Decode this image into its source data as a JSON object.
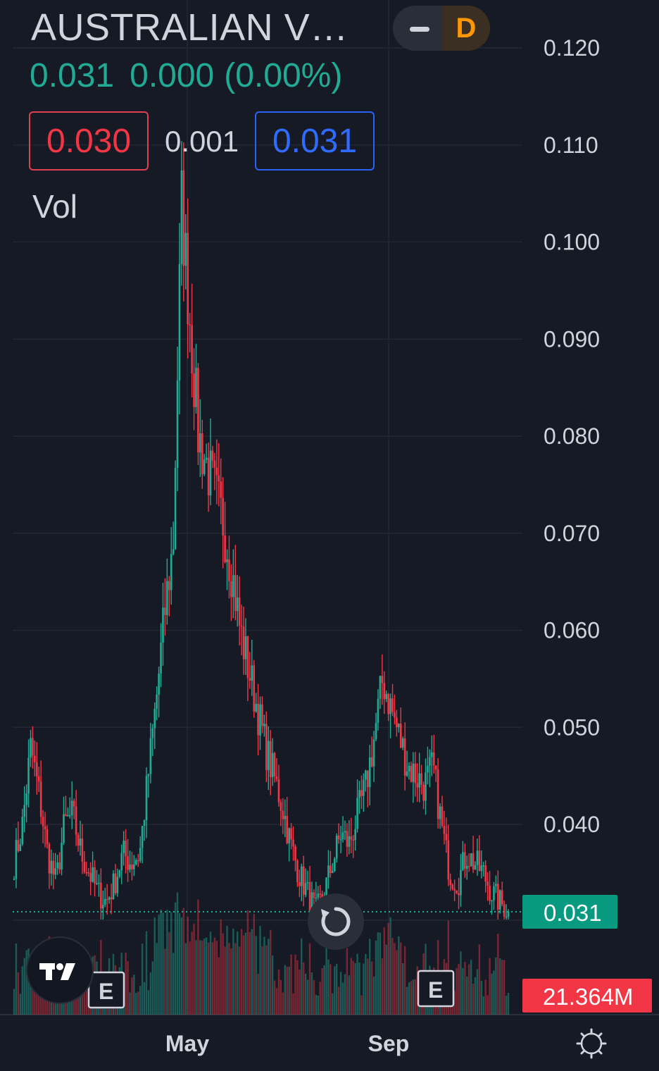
{
  "header": {
    "symbol": "AUSTRALIAN V…",
    "last_price": "0.031",
    "change": "0.000",
    "change_pct": "(0.00%)",
    "bid": "0.030",
    "spread": "0.001",
    "ask": "0.031",
    "volume_label": "Vol",
    "interval": "D"
  },
  "colors": {
    "background": "#161a25",
    "up": "#22ab94",
    "down": "#f23645",
    "grid": "#232733",
    "axis_text": "#d1d4dc",
    "price_label_bg": "#089981",
    "volume_label_bg": "#f23645"
  },
  "chart_data": {
    "type": "candlestick",
    "y_axis_ticks": [
      "0.120",
      "0.110",
      "0.100",
      "0.090",
      "0.080",
      "0.070",
      "0.060",
      "0.050",
      "0.040"
    ],
    "ylim": [
      0.029,
      0.124
    ],
    "x_axis_ticks": [
      "May",
      "Sep"
    ],
    "current_price_label": "0.031",
    "volume_label": "21.364M",
    "earnings_markers": [
      "E",
      "E"
    ],
    "close_series_approx": [
      0.036,
      0.04,
      0.048,
      0.043,
      0.037,
      0.034,
      0.04,
      0.041,
      0.037,
      0.035,
      0.033,
      0.032,
      0.034,
      0.037,
      0.036,
      0.037,
      0.045,
      0.053,
      0.062,
      0.069,
      0.104,
      0.092,
      0.08,
      0.077,
      0.074,
      0.071,
      0.066,
      0.06,
      0.056,
      0.052,
      0.048,
      0.045,
      0.042,
      0.038,
      0.035,
      0.033,
      0.031,
      0.033,
      0.036,
      0.039,
      0.038,
      0.041,
      0.044,
      0.049,
      0.055,
      0.052,
      0.049,
      0.046,
      0.045,
      0.044,
      0.046,
      0.04,
      0.035,
      0.034,
      0.037,
      0.036,
      0.035,
      0.033,
      0.032,
      0.031
    ]
  }
}
